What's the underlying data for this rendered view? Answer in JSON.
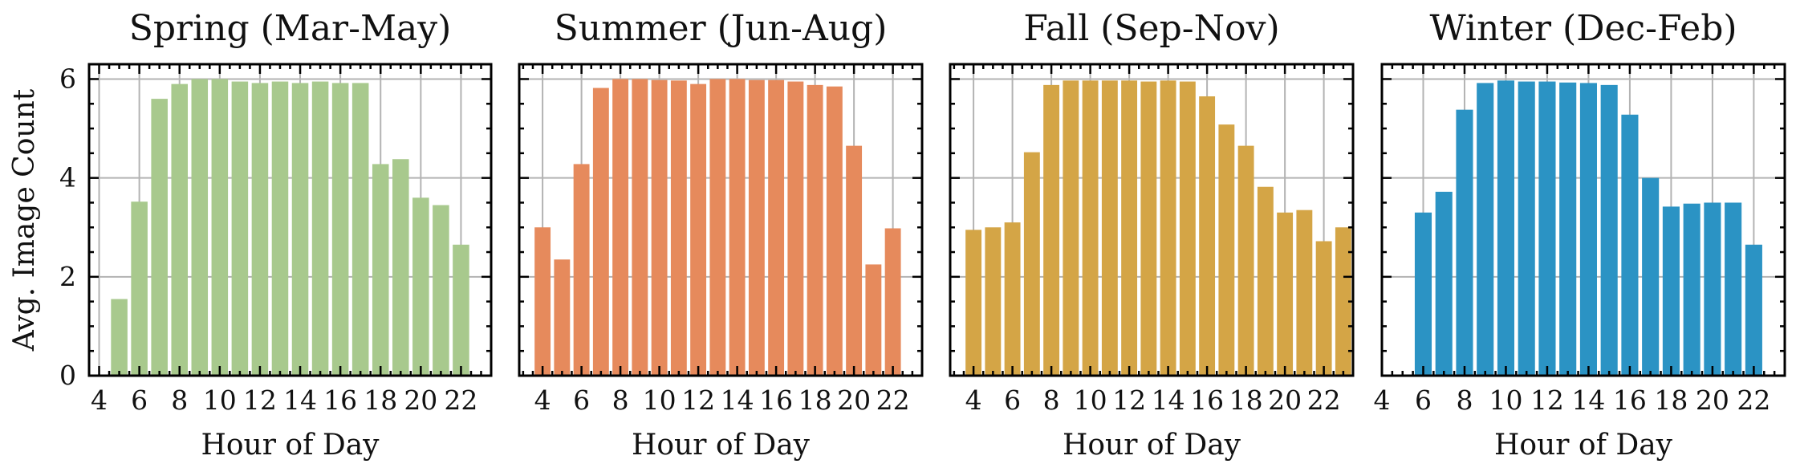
{
  "chart_data": [
    {
      "type": "bar",
      "title": "Spring (Mar-May)",
      "xlabel": "Hour of Day",
      "ylabel": "Avg. Image Count",
      "color": "#a8c98d",
      "xlim": [
        3.5,
        23.5
      ],
      "ylim": [
        0,
        6.3
      ],
      "xticks": [
        4,
        6,
        8,
        10,
        12,
        14,
        16,
        18,
        20,
        22
      ],
      "yticks": [
        0,
        2,
        4,
        6
      ],
      "x": [
        5,
        6,
        7,
        8,
        9,
        10,
        11,
        12,
        13,
        14,
        15,
        16,
        17,
        18,
        19,
        20,
        21,
        22
      ],
      "values": [
        1.55,
        3.52,
        5.6,
        5.9,
        6.0,
        6.0,
        5.95,
        5.92,
        5.95,
        5.92,
        5.95,
        5.92,
        5.92,
        4.28,
        4.38,
        3.6,
        3.45,
        2.65
      ]
    },
    {
      "type": "bar",
      "title": "Summer (Jun-Aug)",
      "xlabel": "Hour of Day",
      "ylabel": "",
      "color": "#e68a5c",
      "xlim": [
        2.8,
        23.5
      ],
      "ylim": [
        0,
        6.3
      ],
      "xticks": [
        4,
        6,
        8,
        10,
        12,
        14,
        16,
        18,
        20,
        22
      ],
      "yticks": [
        0,
        2,
        4,
        6
      ],
      "x": [
        4,
        5,
        6,
        7,
        8,
        9,
        10,
        11,
        12,
        13,
        14,
        15,
        16,
        17,
        18,
        19,
        20,
        21,
        22
      ],
      "values": [
        3.0,
        2.35,
        4.28,
        5.82,
        6.0,
        6.0,
        5.98,
        5.97,
        5.9,
        6.0,
        6.0,
        5.98,
        5.98,
        5.95,
        5.88,
        5.85,
        4.65,
        2.25,
        2.98
      ]
    },
    {
      "type": "bar",
      "title": "Fall (Sep-Nov)",
      "xlabel": "Hour of Day",
      "ylabel": "",
      "color": "#d4a546",
      "xlim": [
        2.8,
        23.5
      ],
      "ylim": [
        0,
        6.3
      ],
      "xticks": [
        4,
        6,
        8,
        10,
        12,
        14,
        16,
        18,
        20,
        22
      ],
      "yticks": [
        0,
        2,
        4,
        6
      ],
      "x": [
        4,
        5,
        6,
        7,
        8,
        9,
        10,
        11,
        12,
        13,
        14,
        15,
        16,
        17,
        18,
        19,
        20,
        21,
        22,
        23
      ],
      "values": [
        2.95,
        3.0,
        3.1,
        4.52,
        5.88,
        5.97,
        5.97,
        5.97,
        5.97,
        5.95,
        5.97,
        5.95,
        5.65,
        5.08,
        4.65,
        3.82,
        3.3,
        3.35,
        2.72,
        3.0
      ]
    },
    {
      "type": "bar",
      "title": "Winter (Dec-Feb)",
      "xlabel": "Hour of Day",
      "ylabel": "",
      "color": "#2b93c4",
      "xlim": [
        4.0,
        23.5
      ],
      "ylim": [
        0,
        6.3
      ],
      "xticks": [
        4,
        6,
        8,
        10,
        12,
        14,
        16,
        18,
        20,
        22
      ],
      "yticks": [
        0,
        2,
        4,
        6
      ],
      "x": [
        6,
        7,
        8,
        9,
        10,
        11,
        12,
        13,
        14,
        15,
        16,
        17,
        18,
        19,
        20,
        21,
        22
      ],
      "values": [
        3.3,
        3.72,
        5.38,
        5.92,
        5.97,
        5.95,
        5.95,
        5.93,
        5.92,
        5.88,
        5.28,
        4.0,
        3.42,
        3.48,
        3.5,
        3.5,
        2.65
      ]
    }
  ]
}
